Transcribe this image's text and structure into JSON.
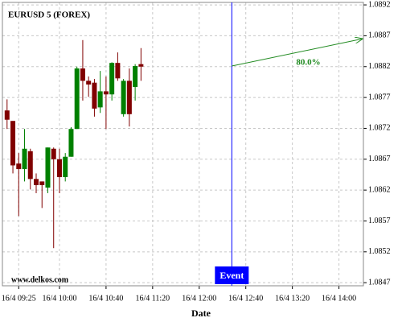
{
  "chart_data": {
    "type": "candlestick",
    "title": "EURUSD 5 (FOREX)",
    "x_label": "Date",
    "watermark": "www.delkos.com",
    "up_color": "#008000",
    "down_color": "#800000",
    "grid": true,
    "xlim": [
      551,
      861
    ],
    "ylim": [
      1.08465,
      1.08924
    ],
    "xticks": [
      {
        "value": 565,
        "label": "16/4 09:25"
      },
      {
        "value": 600,
        "label": "16/4 10:00"
      },
      {
        "value": 640,
        "label": "16/4 10:40"
      },
      {
        "value": 680,
        "label": "16/4 11:20"
      },
      {
        "value": 720,
        "label": "16/4 12:00"
      },
      {
        "value": 760,
        "label": "16/4 12:40"
      },
      {
        "value": 800,
        "label": "16/4 13:20"
      },
      {
        "value": 840,
        "label": "16/4 14:00"
      }
    ],
    "yticks": [
      1.0847,
      1.0852,
      1.0857,
      1.0862,
      1.0867,
      1.0872,
      1.0877,
      1.0882,
      1.0887,
      1.0892
    ],
    "x": [
      555,
      560,
      565,
      570,
      575,
      580,
      585,
      590,
      595,
      600,
      605,
      610,
      615,
      620,
      625,
      630,
      635,
      640,
      645,
      650,
      655,
      660,
      665,
      670
    ],
    "open": [
      1.08749,
      1.08732,
      1.08663,
      1.08654,
      1.08683,
      1.08638,
      1.08634,
      1.08624,
      1.08687,
      1.0867,
      1.08641,
      1.08674,
      1.08719,
      1.08817,
      1.08797,
      1.08794,
      1.08754,
      1.0878,
      1.08775,
      1.08826,
      1.08743,
      1.08797,
      1.08787,
      1.08824
    ],
    "high": [
      1.08767,
      1.08732,
      1.0868,
      1.08719,
      1.08687,
      1.08647,
      1.08634,
      1.08689,
      1.08689,
      1.08687,
      1.0868,
      1.08722,
      1.0882,
      1.08863,
      1.08804,
      1.088,
      1.08813,
      1.08804,
      1.08827,
      1.08843,
      1.088,
      1.08817,
      1.08824,
      1.0885
    ],
    "low": [
      1.08719,
      1.08647,
      1.08578,
      1.08634,
      1.08621,
      1.08615,
      1.08591,
      1.08615,
      1.08526,
      1.08615,
      1.08634,
      1.08674,
      1.08719,
      1.08765,
      1.08771,
      1.08739,
      1.08745,
      1.08719,
      1.08765,
      1.08797,
      1.08739,
      1.08723,
      1.08765,
      1.08797
    ],
    "close": [
      1.08734,
      1.0866,
      1.08654,
      1.08687,
      1.08638,
      1.08628,
      1.08628,
      1.08689,
      1.0867,
      1.08641,
      1.08674,
      1.08719,
      1.08817,
      1.08797,
      1.08791,
      1.08752,
      1.0878,
      1.08775,
      1.08826,
      1.08801,
      1.08797,
      1.08743,
      1.08821,
      1.0882
    ],
    "event": {
      "x": 748,
      "label": "Event",
      "color": "#0000ff"
    },
    "arrow": {
      "x": [
        748,
        860
      ],
      "y": [
        1.08821,
        1.08865
      ],
      "label": "80.0%",
      "color": "#228b22"
    }
  }
}
